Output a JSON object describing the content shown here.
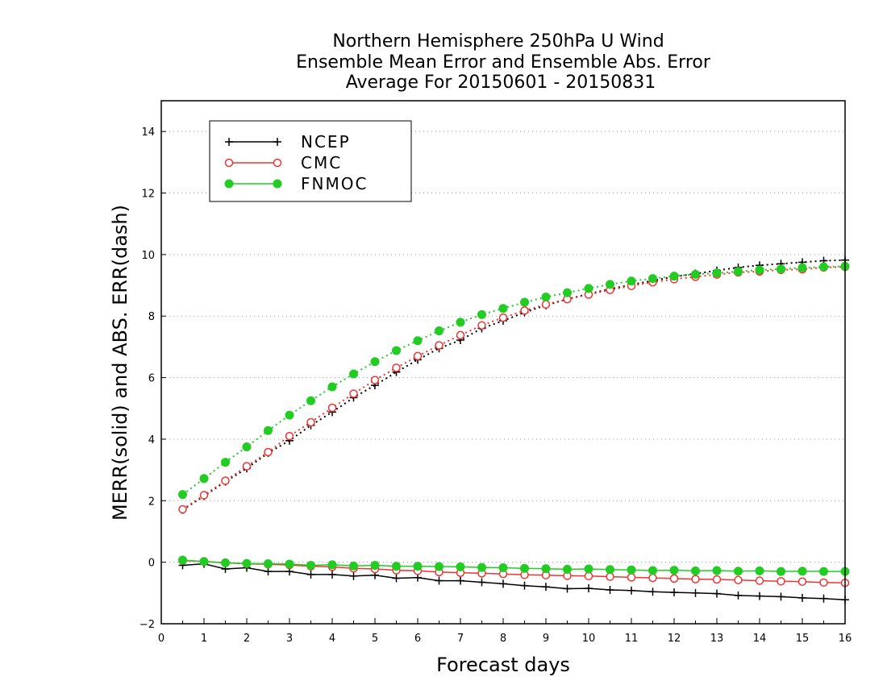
{
  "chart_data": {
    "type": "line",
    "title_lines": [
      "Northern Hemisphere 250hPa U Wind",
      "Ensemble Mean Error and Ensemble Abs. Error",
      "Average For 20150601 - 20150831"
    ],
    "xlabel": "Forecast days",
    "ylabel": "MERR(solid) and ABS. ERR(dash)",
    "xlim": [
      0,
      16
    ],
    "ylim": [
      -2,
      15
    ],
    "xticks": [
      "0",
      "1",
      "2",
      "3",
      "4",
      "5",
      "6",
      "7",
      "8",
      "9",
      "10",
      "11",
      "12",
      "13",
      "14",
      "15",
      "16"
    ],
    "yticks": [
      "−2",
      "0",
      "2",
      "4",
      "6",
      "8",
      "10",
      "12",
      "14"
    ],
    "ytick_values": [
      -2,
      0,
      2,
      4,
      6,
      8,
      10,
      12,
      14
    ],
    "grid": "horizontal dotted",
    "legend": {
      "placement": "top-left",
      "entries": [
        "NCEP",
        "CMC",
        "FNMOC"
      ]
    },
    "x": [
      0.5,
      1,
      1.5,
      2,
      2.5,
      3,
      3.5,
      4,
      4.5,
      5,
      5.5,
      6,
      6.5,
      7,
      7.5,
      8,
      8.5,
      9,
      9.5,
      10,
      10.5,
      11,
      11.5,
      12,
      12.5,
      13,
      13.5,
      14,
      14.5,
      15,
      15.5,
      16
    ],
    "series": [
      {
        "name": "NCEP",
        "color": "#000000",
        "marker": "plus",
        "merr": [
          -0.1,
          -0.05,
          -0.22,
          -0.18,
          -0.3,
          -0.3,
          -0.4,
          -0.4,
          -0.45,
          -0.42,
          -0.52,
          -0.5,
          -0.6,
          -0.6,
          -0.65,
          -0.7,
          -0.76,
          -0.8,
          -0.86,
          -0.85,
          -0.9,
          -0.92,
          -0.96,
          -0.98,
          -1.0,
          -1.02,
          -1.08,
          -1.1,
          -1.12,
          -1.16,
          -1.18,
          -1.22
        ],
        "abs_err": [
          1.7,
          2.15,
          2.62,
          3.05,
          3.55,
          3.95,
          4.45,
          4.88,
          5.35,
          5.75,
          6.18,
          6.58,
          6.95,
          7.22,
          7.6,
          7.85,
          8.12,
          8.35,
          8.55,
          8.72,
          8.88,
          9.02,
          9.15,
          9.28,
          9.38,
          9.48,
          9.58,
          9.65,
          9.7,
          9.75,
          9.8,
          9.82
        ]
      },
      {
        "name": "CMC",
        "color": "#ee3333",
        "marker": "open-circle",
        "merr": [
          0.05,
          0.03,
          -0.02,
          -0.05,
          -0.07,
          -0.09,
          -0.13,
          -0.15,
          -0.2,
          -0.22,
          -0.26,
          -0.28,
          -0.32,
          -0.34,
          -0.36,
          -0.38,
          -0.41,
          -0.42,
          -0.44,
          -0.45,
          -0.47,
          -0.49,
          -0.51,
          -0.53,
          -0.55,
          -0.56,
          -0.58,
          -0.6,
          -0.62,
          -0.63,
          -0.66,
          -0.67
        ],
        "abs_err": [
          1.72,
          2.18,
          2.65,
          3.12,
          3.58,
          4.1,
          4.55,
          5.02,
          5.48,
          5.92,
          6.32,
          6.7,
          7.05,
          7.38,
          7.7,
          7.95,
          8.18,
          8.38,
          8.55,
          8.7,
          8.85,
          8.98,
          9.1,
          9.2,
          9.28,
          9.35,
          9.42,
          9.45,
          9.5,
          9.52,
          9.58,
          9.6
        ]
      },
      {
        "name": "FNMOC",
        "color": "#22cc22",
        "marker": "filled-circle",
        "merr": [
          0.07,
          0.02,
          -0.02,
          -0.04,
          -0.05,
          -0.06,
          -0.1,
          -0.08,
          -0.12,
          -0.1,
          -0.13,
          -0.13,
          -0.14,
          -0.15,
          -0.17,
          -0.18,
          -0.2,
          -0.21,
          -0.23,
          -0.22,
          -0.24,
          -0.25,
          -0.27,
          -0.26,
          -0.28,
          -0.27,
          -0.29,
          -0.28,
          -0.3,
          -0.29,
          -0.3,
          -0.3
        ],
        "abs_err": [
          2.2,
          2.72,
          3.25,
          3.75,
          4.28,
          4.78,
          5.25,
          5.7,
          6.12,
          6.52,
          6.88,
          7.2,
          7.52,
          7.8,
          8.05,
          8.25,
          8.45,
          8.62,
          8.76,
          8.9,
          9.03,
          9.14,
          9.22,
          9.3,
          9.36,
          9.4,
          9.45,
          9.5,
          9.53,
          9.57,
          9.6,
          9.62
        ]
      }
    ]
  }
}
